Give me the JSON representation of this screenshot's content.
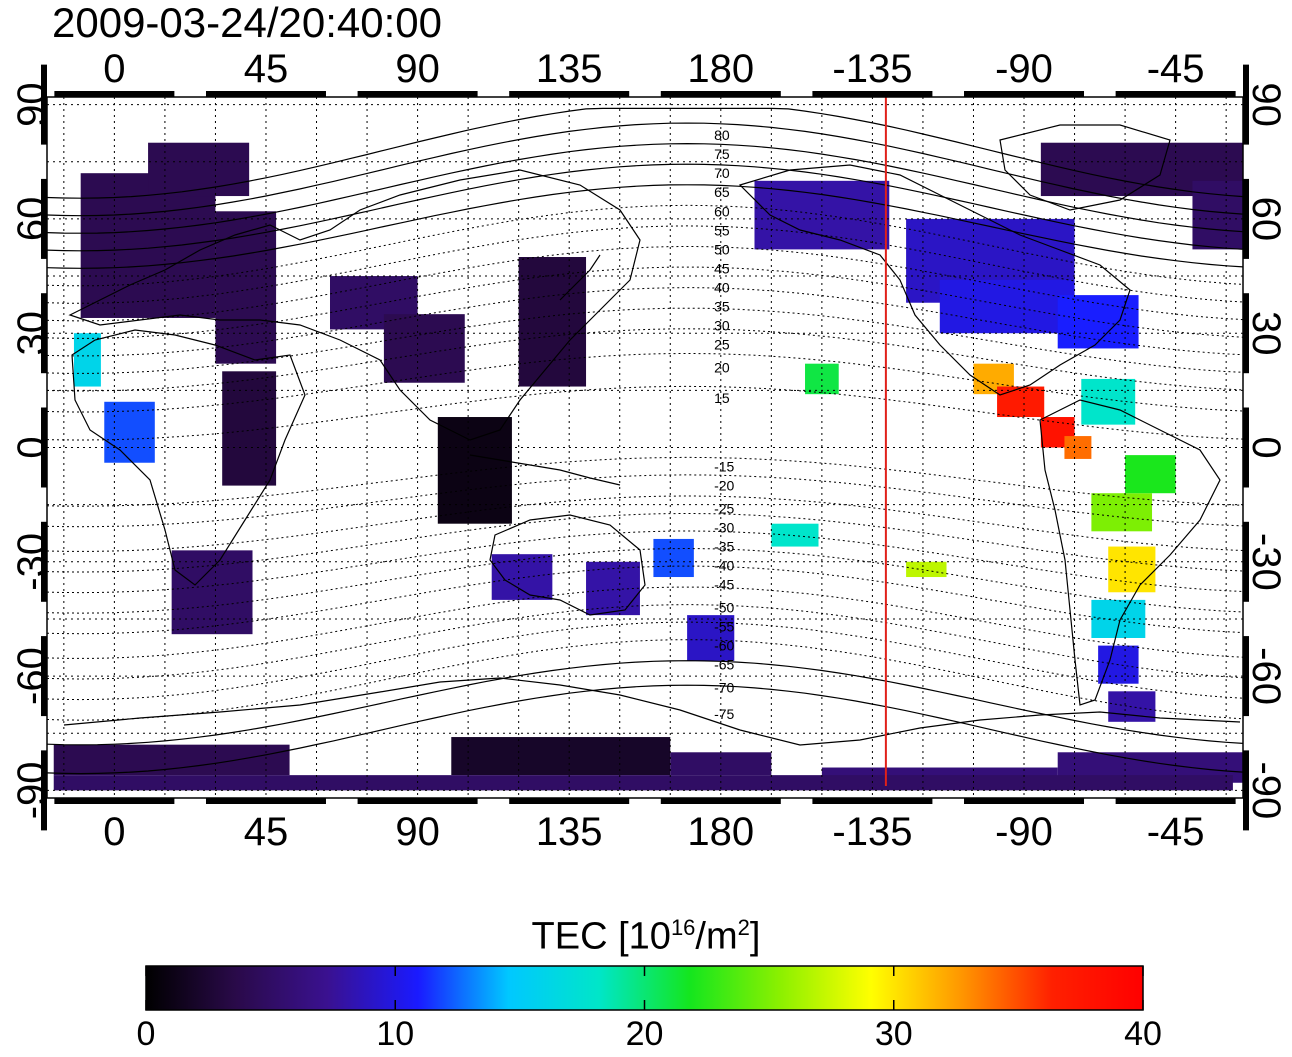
{
  "title": "2009-03-24/20:40:00",
  "map": {
    "lon_ticks": [
      {
        "lon": 0,
        "label": "0"
      },
      {
        "lon": 45,
        "label": "45"
      },
      {
        "lon": 90,
        "label": "90"
      },
      {
        "lon": 135,
        "label": "135"
      },
      {
        "lon": 180,
        "label": "180"
      },
      {
        "lon": 225,
        "label": "-135"
      },
      {
        "lon": 270,
        "label": "-90"
      },
      {
        "lon": 315,
        "label": "-45"
      }
    ],
    "lat_ticks": [
      {
        "lat": 90,
        "label": "90"
      },
      {
        "lat": 60,
        "label": "60"
      },
      {
        "lat": 30,
        "label": "30"
      },
      {
        "lat": 0,
        "label": "0"
      },
      {
        "lat": -30,
        "label": "-30"
      },
      {
        "lat": -60,
        "label": "-60"
      },
      {
        "lat": -90,
        "label": "-90"
      }
    ],
    "lon_range": [
      -20,
      335
    ],
    "lat_range": [
      -92,
      92
    ],
    "grid": true,
    "terminator_lon": 229,
    "terminator_color": "#e0201a",
    "contour_labels": [
      {
        "label": "80",
        "lat": 82
      },
      {
        "label": "75",
        "lat": 77
      },
      {
        "label": "70",
        "lat": 72
      },
      {
        "label": "65",
        "lat": 67
      },
      {
        "label": "60",
        "lat": 62
      },
      {
        "label": "55",
        "lat": 57
      },
      {
        "label": "50",
        "lat": 52
      },
      {
        "label": "45",
        "lat": 47
      },
      {
        "label": "40",
        "lat": 42
      },
      {
        "label": "35",
        "lat": 37
      },
      {
        "label": "30",
        "lat": 32
      },
      {
        "label": "25",
        "lat": 27
      },
      {
        "label": "20",
        "lat": 21
      },
      {
        "label": "15",
        "lat": 13
      },
      {
        "label": "-15",
        "lat": -5
      },
      {
        "label": "-20",
        "lat": -10
      },
      {
        "label": "-25",
        "lat": -16
      },
      {
        "label": "-30",
        "lat": -21
      },
      {
        "label": "-35",
        "lat": -26
      },
      {
        "label": "-40",
        "lat": -31
      },
      {
        "label": "-45",
        "lat": -36
      },
      {
        "label": "-50",
        "lat": -42
      },
      {
        "label": "-55",
        "lat": -47
      },
      {
        "label": "-60",
        "lat": -52
      },
      {
        "label": "-65",
        "lat": -57
      },
      {
        "label": "-70",
        "lat": -63
      },
      {
        "label": "-75",
        "lat": -70
      }
    ]
  },
  "colorbar": {
    "title_prefix": "TEC  [10",
    "title_sup1": "16",
    "title_mid": "/m",
    "title_sup2": "2",
    "title_suffix": "]",
    "min": 0,
    "max": 40,
    "ticks": [
      {
        "value": 0,
        "label": "0"
      },
      {
        "value": 10,
        "label": "10"
      },
      {
        "value": 20,
        "label": "20"
      },
      {
        "value": 30,
        "label": "30"
      },
      {
        "value": 40,
        "label": "40"
      }
    ],
    "colors": [
      "#000000",
      "#2a0a4a",
      "#3a1190",
      "#1a1aff",
      "#00c8ff",
      "#00e6c8",
      "#14e61e",
      "#8cf000",
      "#ffff00",
      "#ff9600",
      "#ff2000",
      "#ff0000"
    ]
  },
  "tec_patches": [
    {
      "name": "europe",
      "lon": -10,
      "lat": 72,
      "w": 40,
      "h": 38,
      "tec": 4
    },
    {
      "name": "scandinavia",
      "lon": 10,
      "lat": 80,
      "w": 30,
      "h": 14,
      "tec": 4
    },
    {
      "name": "eastern-europe",
      "lon": 30,
      "lat": 62,
      "w": 18,
      "h": 40,
      "tec": 4
    },
    {
      "name": "iberia-coast",
      "lon": -12,
      "lat": 30,
      "w": 8,
      "h": 14,
      "tec": 16
    },
    {
      "name": "west-africa",
      "lon": -3,
      "lat": 12,
      "w": 15,
      "h": 16,
      "tec": 12
    },
    {
      "name": "central-africa",
      "lon": 32,
      "lat": 20,
      "w": 16,
      "h": 30,
      "tec": 3
    },
    {
      "name": "south-africa",
      "lon": 17,
      "lat": -27,
      "w": 24,
      "h": 22,
      "tec": 5
    },
    {
      "name": "middle-east",
      "lon": 64,
      "lat": 45,
      "w": 26,
      "h": 14,
      "tec": 5
    },
    {
      "name": "india",
      "lon": 80,
      "lat": 35,
      "w": 24,
      "h": 18,
      "tec": 4
    },
    {
      "name": "east-asia",
      "lon": 120,
      "lat": 50,
      "w": 20,
      "h": 34,
      "tec": 3
    },
    {
      "name": "southeast-asia",
      "lon": 96,
      "lat": 8,
      "w": 22,
      "h": 28,
      "tec": 1
    },
    {
      "name": "australia-west",
      "lon": 112,
      "lat": -28,
      "w": 18,
      "h": 12,
      "tec": 8
    },
    {
      "name": "australia-east",
      "lon": 140,
      "lat": -30,
      "w": 16,
      "h": 14,
      "tec": 8
    },
    {
      "name": "new-zealand-seas",
      "lon": 160,
      "lat": -24,
      "w": 12,
      "h": 10,
      "tec": 12
    },
    {
      "name": "nz-south",
      "lon": 170,
      "lat": -44,
      "w": 14,
      "h": 12,
      "tec": 9
    },
    {
      "name": "alaska-canada",
      "lon": 190,
      "lat": 70,
      "w": 40,
      "h": 18,
      "tec": 8
    },
    {
      "name": "canada",
      "lon": 235,
      "lat": 60,
      "w": 50,
      "h": 22,
      "tec": 9
    },
    {
      "name": "usa",
      "lon": 245,
      "lat": 44,
      "w": 40,
      "h": 14,
      "tec": 10
    },
    {
      "name": "usa-east",
      "lon": 280,
      "lat": 40,
      "w": 24,
      "h": 14,
      "tec": 11
    },
    {
      "name": "greenland",
      "lon": 275,
      "lat": 80,
      "w": 60,
      "h": 14,
      "tec": 4
    },
    {
      "name": "north-atlantic",
      "lon": 320,
      "lat": 70,
      "w": 15,
      "h": 18,
      "tec": 5
    },
    {
      "name": "hawaii",
      "lon": 205,
      "lat": 22,
      "w": 10,
      "h": 8,
      "tec": 21
    },
    {
      "name": "mexico",
      "lon": 255,
      "lat": 22,
      "w": 12,
      "h": 8,
      "tec": 32
    },
    {
      "name": "central-america",
      "lon": 262,
      "lat": 16,
      "w": 14,
      "h": 8,
      "tec": 37
    },
    {
      "name": "panama",
      "lon": 275,
      "lat": 8,
      "w": 10,
      "h": 8,
      "tec": 38
    },
    {
      "name": "colombia",
      "lon": 282,
      "lat": 3,
      "w": 8,
      "h": 6,
      "tec": 34
    },
    {
      "name": "caribbean",
      "lon": 287,
      "lat": 18,
      "w": 16,
      "h": 12,
      "tec": 18
    },
    {
      "name": "amazon",
      "lon": 290,
      "lat": -12,
      "w": 18,
      "h": 10,
      "tec": 25
    },
    {
      "name": "brazil",
      "lon": 300,
      "lat": -2,
      "w": 15,
      "h": 10,
      "tec": 22
    },
    {
      "name": "south-brazil",
      "lon": 295,
      "lat": -26,
      "w": 14,
      "h": 12,
      "tec": 30
    },
    {
      "name": "argentina",
      "lon": 290,
      "lat": -40,
      "w": 16,
      "h": 10,
      "tec": 16
    },
    {
      "name": "patagonia",
      "lon": 292,
      "lat": -52,
      "w": 12,
      "h": 10,
      "tec": 10
    },
    {
      "name": "tierra-del-fuego",
      "lon": 295,
      "lat": -64,
      "w": 14,
      "h": 8,
      "tec": 8
    },
    {
      "name": "south-pacific-east",
      "lon": 235,
      "lat": -30,
      "w": 12,
      "h": 4,
      "tec": 27
    },
    {
      "name": "south-pacific-mid",
      "lon": 195,
      "lat": -20,
      "w": 14,
      "h": 6,
      "tec": 18
    },
    {
      "name": "antarctica-west",
      "lon": -18,
      "lat": -78,
      "w": 70,
      "h": 8,
      "tec": 4
    },
    {
      "name": "antarctica-east",
      "lon": 100,
      "lat": -76,
      "w": 65,
      "h": 10,
      "tec": 2
    },
    {
      "name": "antarctica-pacific",
      "lon": 165,
      "lat": -80,
      "w": 30,
      "h": 6,
      "tec": 5
    },
    {
      "name": "antarctica-ross",
      "lon": 210,
      "lat": -84,
      "w": 70,
      "h": 4,
      "tec": 6
    },
    {
      "name": "antarctica-peninsula",
      "lon": 280,
      "lat": -80,
      "w": 55,
      "h": 8,
      "tec": 6
    },
    {
      "name": "south-pole-band",
      "lon": -18,
      "lat": -86,
      "w": 350,
      "h": 4,
      "tec": 5
    }
  ]
}
